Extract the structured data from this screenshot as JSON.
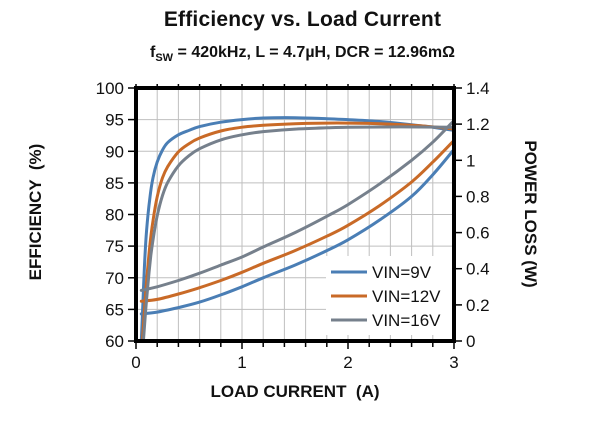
{
  "chart": {
    "title": "Efficiency vs. Load Current",
    "subtitle": {
      "prefix": "f",
      "sub": "SW",
      "rest": " = 420kHz, L = 4.7µH, DCR = 12.96mΩ"
    }
  },
  "chart_data": {
    "type": "line",
    "title": "Efficiency vs. Load Current",
    "subtitle_plain": "fSW = 420kHz, L = 4.7µH, DCR = 12.96mΩ",
    "xlabel": "LOAD CURRENT  (A)",
    "ylabel_left": "EFFICIENCY  (%)",
    "ylabel_right": "POWER LOSS (W)",
    "x_range": [
      0,
      3
    ],
    "y_left_range": [
      60,
      100
    ],
    "y_right_range": [
      0,
      1.4
    ],
    "x_ticks": [
      0,
      1,
      2,
      3
    ],
    "x_minor_step": 0.2,
    "y_left_ticks": [
      100,
      95,
      90,
      85,
      80,
      75,
      70,
      65,
      60
    ],
    "y_right_ticks": [
      "1.4",
      "1.2",
      "1",
      "0.8",
      "0.6",
      "0.4",
      "0.2",
      "0"
    ],
    "grid": {
      "x_step": 0.2,
      "y_step": 5,
      "color": "#bfbfbf",
      "on": true
    },
    "legend_position": "inside-bottom-right",
    "legend": [
      {
        "label": "VIN=9V",
        "color": "#4a7eb5"
      },
      {
        "label": "VIN=12V",
        "color": "#c96a27"
      },
      {
        "label": "VIN=16V",
        "color": "#76808c"
      }
    ],
    "series": [
      {
        "name": "VIN=9V efficiency",
        "legend": "VIN=9V",
        "color": "#4a7eb5",
        "axis": "left",
        "points": [
          [
            0.05,
            60
          ],
          [
            0.06,
            64
          ],
          [
            0.08,
            72
          ],
          [
            0.1,
            77.5
          ],
          [
            0.13,
            82.5
          ],
          [
            0.16,
            85.8
          ],
          [
            0.2,
            88.3
          ],
          [
            0.25,
            90.2
          ],
          [
            0.3,
            91.4
          ],
          [
            0.4,
            92.6
          ],
          [
            0.5,
            93.3
          ],
          [
            0.6,
            93.9
          ],
          [
            0.8,
            94.6
          ],
          [
            1.0,
            95.0
          ],
          [
            1.2,
            95.25
          ],
          [
            1.5,
            95.3
          ],
          [
            1.8,
            95.15
          ],
          [
            2.0,
            95.0
          ],
          [
            2.3,
            94.7
          ],
          [
            2.6,
            94.2
          ],
          [
            2.8,
            93.8
          ],
          [
            3.0,
            93.3
          ]
        ]
      },
      {
        "name": "VIN=9V power loss",
        "legend": "VIN=9V",
        "color": "#4a7eb5",
        "axis": "right",
        "points": [
          [
            0.05,
            0.15
          ],
          [
            0.2,
            0.16
          ],
          [
            0.4,
            0.185
          ],
          [
            0.6,
            0.215
          ],
          [
            0.8,
            0.255
          ],
          [
            1.0,
            0.3
          ],
          [
            1.2,
            0.35
          ],
          [
            1.5,
            0.42
          ],
          [
            1.8,
            0.5
          ],
          [
            2.0,
            0.56
          ],
          [
            2.3,
            0.67
          ],
          [
            2.6,
            0.8
          ],
          [
            2.8,
            0.92
          ],
          [
            3.0,
            1.06
          ]
        ]
      },
      {
        "name": "VIN=12V efficiency",
        "legend": "VIN=12V",
        "color": "#c96a27",
        "axis": "left",
        "points": [
          [
            0.06,
            60
          ],
          [
            0.08,
            65
          ],
          [
            0.1,
            69.5
          ],
          [
            0.13,
            75
          ],
          [
            0.16,
            79
          ],
          [
            0.2,
            82.8
          ],
          [
            0.25,
            85.8
          ],
          [
            0.3,
            87.6
          ],
          [
            0.4,
            89.9
          ],
          [
            0.5,
            91.2
          ],
          [
            0.6,
            92.1
          ],
          [
            0.8,
            93.2
          ],
          [
            1.0,
            93.8
          ],
          [
            1.2,
            94.1
          ],
          [
            1.5,
            94.35
          ],
          [
            1.8,
            94.45
          ],
          [
            2.0,
            94.45
          ],
          [
            2.3,
            94.35
          ],
          [
            2.6,
            94.1
          ],
          [
            2.8,
            93.85
          ],
          [
            3.0,
            93.5
          ]
        ]
      },
      {
        "name": "VIN=12V power loss",
        "legend": "VIN=12V",
        "color": "#c96a27",
        "axis": "right",
        "points": [
          [
            0.05,
            0.22
          ],
          [
            0.2,
            0.23
          ],
          [
            0.4,
            0.26
          ],
          [
            0.6,
            0.295
          ],
          [
            0.8,
            0.335
          ],
          [
            1.0,
            0.38
          ],
          [
            1.2,
            0.43
          ],
          [
            1.5,
            0.5
          ],
          [
            1.8,
            0.58
          ],
          [
            2.0,
            0.64
          ],
          [
            2.3,
            0.75
          ],
          [
            2.6,
            0.88
          ],
          [
            2.8,
            0.99
          ],
          [
            3.0,
            1.11
          ]
        ]
      },
      {
        "name": "VIN=16V efficiency",
        "legend": "VIN=16V",
        "color": "#76808c",
        "axis": "left",
        "points": [
          [
            0.07,
            60
          ],
          [
            0.09,
            64.5
          ],
          [
            0.11,
            68.5
          ],
          [
            0.14,
            73.5
          ],
          [
            0.17,
            77
          ],
          [
            0.2,
            79.8
          ],
          [
            0.25,
            83
          ],
          [
            0.3,
            85.1
          ],
          [
            0.4,
            87.7
          ],
          [
            0.5,
            89.3
          ],
          [
            0.6,
            90.4
          ],
          [
            0.8,
            91.8
          ],
          [
            1.0,
            92.6
          ],
          [
            1.2,
            93.1
          ],
          [
            1.5,
            93.5
          ],
          [
            1.8,
            93.7
          ],
          [
            2.0,
            93.8
          ],
          [
            2.5,
            93.85
          ],
          [
            3.0,
            93.8
          ]
        ]
      },
      {
        "name": "VIN=16V power loss",
        "legend": "VIN=16V",
        "color": "#76808c",
        "axis": "right",
        "points": [
          [
            0.05,
            0.28
          ],
          [
            0.2,
            0.3
          ],
          [
            0.4,
            0.335
          ],
          [
            0.6,
            0.375
          ],
          [
            0.8,
            0.42
          ],
          [
            1.0,
            0.465
          ],
          [
            1.2,
            0.52
          ],
          [
            1.5,
            0.6
          ],
          [
            1.8,
            0.69
          ],
          [
            2.0,
            0.755
          ],
          [
            2.3,
            0.87
          ],
          [
            2.6,
            1.0
          ],
          [
            2.8,
            1.1
          ],
          [
            3.0,
            1.22
          ]
        ]
      }
    ]
  }
}
